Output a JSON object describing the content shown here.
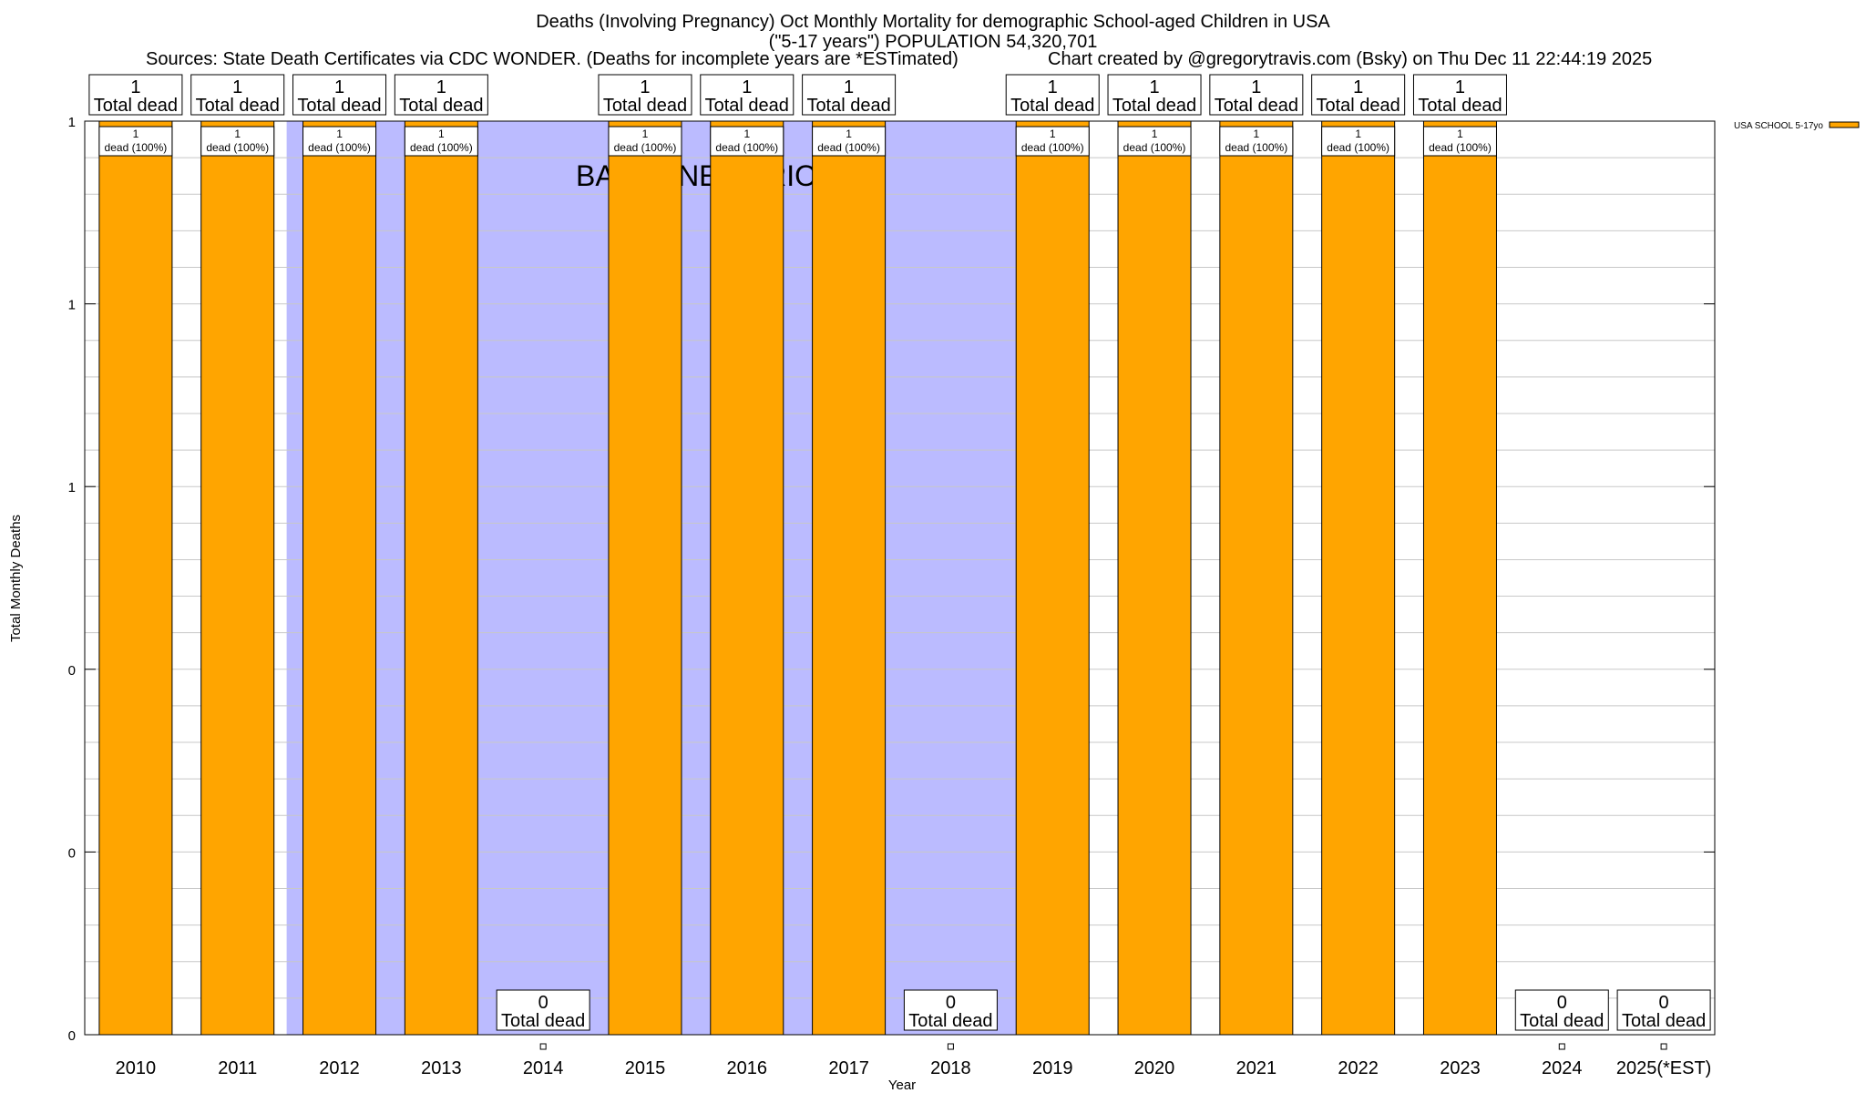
{
  "header": {
    "title_line1": "Deaths (Involving Pregnancy) Oct Monthly Mortality for demographic School-aged Children in USA",
    "title_line2": "(\"5-17 years\") POPULATION 54,320,701",
    "sources": "Sources: State Death Certificates via CDC WONDER. (Deaths for incomplete years are *ESTimated)",
    "credit": "Chart created by @gregorytravis.com (Bsky) on Thu Dec 11 22:44:19 2025"
  },
  "chart_data": {
    "type": "bar",
    "xlabel": "Year",
    "ylabel": "Total Monthly Deaths",
    "ylim": [
      0,
      1
    ],
    "y_tick_labels": [
      "0",
      "0",
      "0",
      "1",
      "1",
      "1"
    ],
    "grid": true,
    "legend": {
      "position": "top-right",
      "label": "USA SCHOOL 5-17yo"
    },
    "categories": [
      "2010",
      "2011",
      "2012",
      "2013",
      "2014",
      "2015",
      "2016",
      "2017",
      "2018",
      "2019",
      "2020",
      "2021",
      "2022",
      "2023",
      "2024",
      "2025(*EST)"
    ],
    "series": [
      {
        "name": "USA SCHOOL 5-17yo",
        "color": "#ffa500",
        "values": [
          1,
          1,
          1,
          1,
          0,
          1,
          1,
          1,
          0,
          1,
          1,
          1,
          1,
          1,
          0,
          0
        ]
      }
    ],
    "total_label_suffix": "Total dead",
    "bar_label_suffix": "dead (100%)",
    "baseline": {
      "label": "BASELINE PERIOD",
      "color": "#bbbbff",
      "start": "2012",
      "end": "2019"
    }
  }
}
